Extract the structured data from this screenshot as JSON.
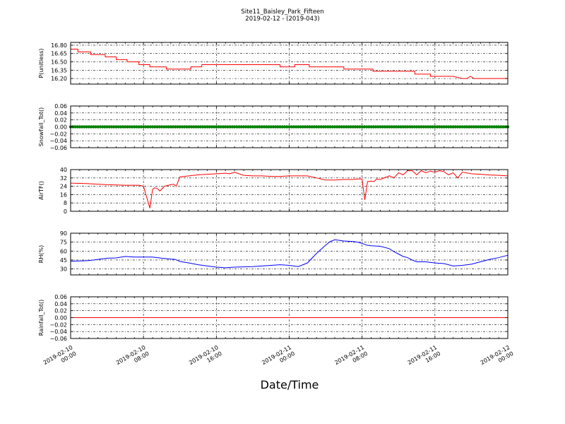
{
  "figure": {
    "title_line1": "Site11_Baisley_Park_Fifteen",
    "title_line2": "2019-02-12 - (2019-043)",
    "xlabel": "Date/Time"
  },
  "x_ticks": [
    {
      "l1": "2019-02-10",
      "l2": "00:00",
      "t": 0
    },
    {
      "l1": "2019-02-10",
      "l2": "08:00",
      "t": 8
    },
    {
      "l1": "2019-02-10",
      "l2": "16:00",
      "t": 16
    },
    {
      "l1": "2019-02-11",
      "l2": "00:00",
      "t": 24
    },
    {
      "l1": "2019-02-11",
      "l2": "08:00",
      "t": 32
    },
    {
      "l1": "2019-02-11",
      "l2": "16:00",
      "t": 40
    },
    {
      "l1": "2019-02-12",
      "l2": "00:00",
      "t": 48
    }
  ],
  "chart_data": [
    {
      "type": "line",
      "ylabel": "P(unitless)",
      "ylim": [
        16.1,
        16.85
      ],
      "yticks": [
        "16.80",
        "16.65",
        "16.50",
        "16.35",
        "16.20"
      ],
      "ytick_values": [
        16.8,
        16.65,
        16.5,
        16.35,
        16.2
      ],
      "grid": true,
      "color": "#ff0000",
      "series": [
        {
          "x": [
            0,
            0.8,
            0.8,
            2.2,
            2.2,
            3.8,
            3.8,
            5.0,
            5.0,
            6.2,
            6.2,
            7.5,
            7.5,
            8.7,
            8.7,
            10.5,
            10.5,
            13.2,
            13.2,
            14.4,
            14.4,
            23.0,
            23.0,
            24.6,
            24.6,
            26.2,
            26.2,
            30.0,
            30.0,
            33.2,
            33.2,
            34.4,
            34.4,
            37.8,
            37.8,
            39.5,
            39.5,
            42.0,
            42.0,
            43.0,
            43.5,
            43.9,
            44.3,
            48
          ],
          "y": [
            16.73,
            16.73,
            16.68,
            16.68,
            16.63,
            16.63,
            16.59,
            16.59,
            16.54,
            16.54,
            16.5,
            16.5,
            16.45,
            16.45,
            16.41,
            16.41,
            16.37,
            16.37,
            16.41,
            16.41,
            16.45,
            16.45,
            16.41,
            16.41,
            16.45,
            16.45,
            16.41,
            16.41,
            16.37,
            16.37,
            16.33,
            16.33,
            16.33,
            16.33,
            16.28,
            16.28,
            16.24,
            16.24,
            16.24,
            16.2,
            16.2,
            16.24,
            16.2,
            16.2
          ]
        }
      ]
    },
    {
      "type": "scatter",
      "ylabel": "Snowfall_Tot()",
      "ylim": [
        -0.06,
        0.06
      ],
      "yticks": [
        "0.06",
        "0.04",
        "0.02",
        "0.00",
        "−0.02",
        "−0.04",
        "−0.06"
      ],
      "ytick_values": [
        0.06,
        0.04,
        0.02,
        0.0,
        -0.02,
        -0.04,
        -0.06
      ],
      "grid": true,
      "color": "#008000",
      "series": [
        {
          "x_start": 0,
          "x_end": 48,
          "step": 0.25,
          "value": 0.0
        }
      ]
    },
    {
      "type": "line",
      "ylabel": "AirTF()",
      "ylim": [
        0,
        40
      ],
      "yticks": [
        "40",
        "32",
        "24",
        "16",
        "8",
        "0"
      ],
      "ytick_values": [
        40,
        32,
        24,
        16,
        8,
        0
      ],
      "grid": true,
      "color": "#ff0000",
      "series": [
        {
          "x": [
            0,
            2,
            4,
            6,
            7.5,
            7.8,
            8.0,
            8.3,
            8.7,
            9.0,
            9.2,
            9.5,
            9.8,
            10.3,
            11.0,
            11.3,
            11.6,
            12.0,
            13.0,
            14.0,
            15.0,
            16.0,
            17.0,
            17.5,
            18.0,
            18.5,
            19.0,
            20.0,
            21.0,
            22.0,
            23.0,
            24.0,
            25.0,
            26.0,
            27.0,
            28.0,
            29.0,
            30.0,
            31.0,
            31.5,
            32.0,
            32.3,
            32.6,
            33.0,
            33.3,
            33.6,
            34.0,
            35.0,
            35.5,
            36.0,
            36.5,
            37.0,
            37.5,
            38.0,
            38.5,
            39.0,
            39.5,
            40.0,
            40.5,
            41.0,
            41.5,
            42.0,
            42.5,
            43.0,
            44.0,
            45.0,
            46.0,
            47.0,
            48.0
          ],
          "y": [
            27,
            26.5,
            25.5,
            25,
            25,
            24.5,
            24,
            15,
            3,
            21,
            22.5,
            22,
            19.5,
            24,
            25.5,
            26,
            24,
            33,
            34,
            35,
            35.5,
            36,
            36.5,
            36,
            37.5,
            36,
            34.5,
            34,
            34,
            33.5,
            33.5,
            34,
            34,
            34,
            32,
            30,
            30,
            30.5,
            30.5,
            31,
            31,
            11,
            28.5,
            29,
            28.5,
            31,
            30.5,
            34,
            32,
            37,
            35,
            39,
            39,
            35,
            39,
            37,
            38.5,
            37.5,
            39,
            38,
            35,
            37,
            32,
            37.5,
            36,
            35.5,
            34.8,
            34.5,
            34
          ]
        }
      ]
    },
    {
      "type": "line",
      "ylabel": "RH(%)",
      "ylim": [
        20,
        90
      ],
      "yticks": [
        "90",
        "75",
        "60",
        "45",
        "30"
      ],
      "ytick_values": [
        90,
        75,
        60,
        45,
        30
      ],
      "grid": true,
      "color": "#0000ff",
      "series": [
        {
          "x": [
            0,
            1,
            2,
            3,
            4,
            5,
            6,
            7,
            8,
            9,
            10,
            11,
            11.5,
            12,
            13,
            14,
            15,
            16,
            17,
            18,
            19,
            20,
            21,
            22,
            23,
            24,
            25,
            26,
            27,
            28,
            28.5,
            29,
            29.5,
            30,
            30.5,
            31,
            31.5,
            32,
            32.5,
            33,
            34,
            35,
            35.5,
            36,
            36.5,
            37,
            37.5,
            38,
            39,
            40,
            41,
            42,
            43,
            44,
            45,
            46,
            47,
            48
          ],
          "y": [
            43,
            43.5,
            44,
            46,
            48,
            48.5,
            51,
            50,
            50,
            50,
            48,
            46.5,
            46,
            42.5,
            40,
            37,
            35,
            33,
            32,
            33,
            33.5,
            34,
            35,
            36,
            37,
            36,
            34,
            40,
            56,
            70,
            76,
            79,
            78,
            77,
            76.5,
            76,
            75,
            73,
            70,
            69,
            68,
            64,
            59,
            55,
            51,
            49,
            45,
            42,
            42,
            40,
            39,
            35,
            36,
            38,
            42,
            46,
            49,
            53
          ]
        }
      ]
    },
    {
      "type": "line",
      "ylabel": "Rainfall_Tot()",
      "ylim": [
        -0.06,
        0.06
      ],
      "yticks": [
        "0.06",
        "0.04",
        "0.02",
        "0.00",
        "−0.02",
        "−0.04",
        "−0.06"
      ],
      "ytick_values": [
        0.06,
        0.04,
        0.02,
        0.0,
        -0.02,
        -0.04,
        -0.06
      ],
      "grid": true,
      "color": "#ff0000",
      "series": [
        {
          "x": [
            0,
            48
          ],
          "y": [
            0.0,
            0.0
          ]
        }
      ]
    }
  ]
}
